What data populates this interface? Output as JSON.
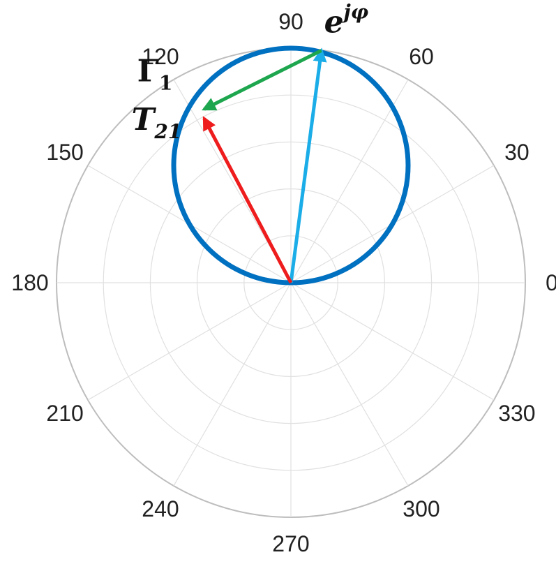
{
  "chart_data": {
    "type": "polar",
    "grid": true,
    "rings": 5,
    "angular_ticks": [
      "0",
      "30",
      "60",
      "90",
      "120",
      "150",
      "180",
      "210",
      "240",
      "270",
      "300",
      "330"
    ],
    "circle": {
      "name": "",
      "center": [
        0.0,
        0.5
      ],
      "radius": 0.5,
      "color": "#0070C0"
    },
    "vectors": [
      {
        "name": "e^{jφ}",
        "base": "e",
        "sup": "jφ",
        "from": [
          0.0,
          0.0
        ],
        "to": [
          0.13,
          0.99
        ],
        "color": "#1BADE8"
      },
      {
        "name": "Γ1",
        "base": "Γ",
        "sub": "1",
        "from": [
          0.13,
          0.99
        ],
        "to": [
          -0.37,
          0.74
        ],
        "color": "#1DA64E"
      },
      {
        "name": "T21",
        "base": "T",
        "sub": "21",
        "from": [
          0.0,
          0.0
        ],
        "to": [
          -0.37,
          0.7
        ],
        "color": "#EE1C1C"
      }
    ]
  }
}
